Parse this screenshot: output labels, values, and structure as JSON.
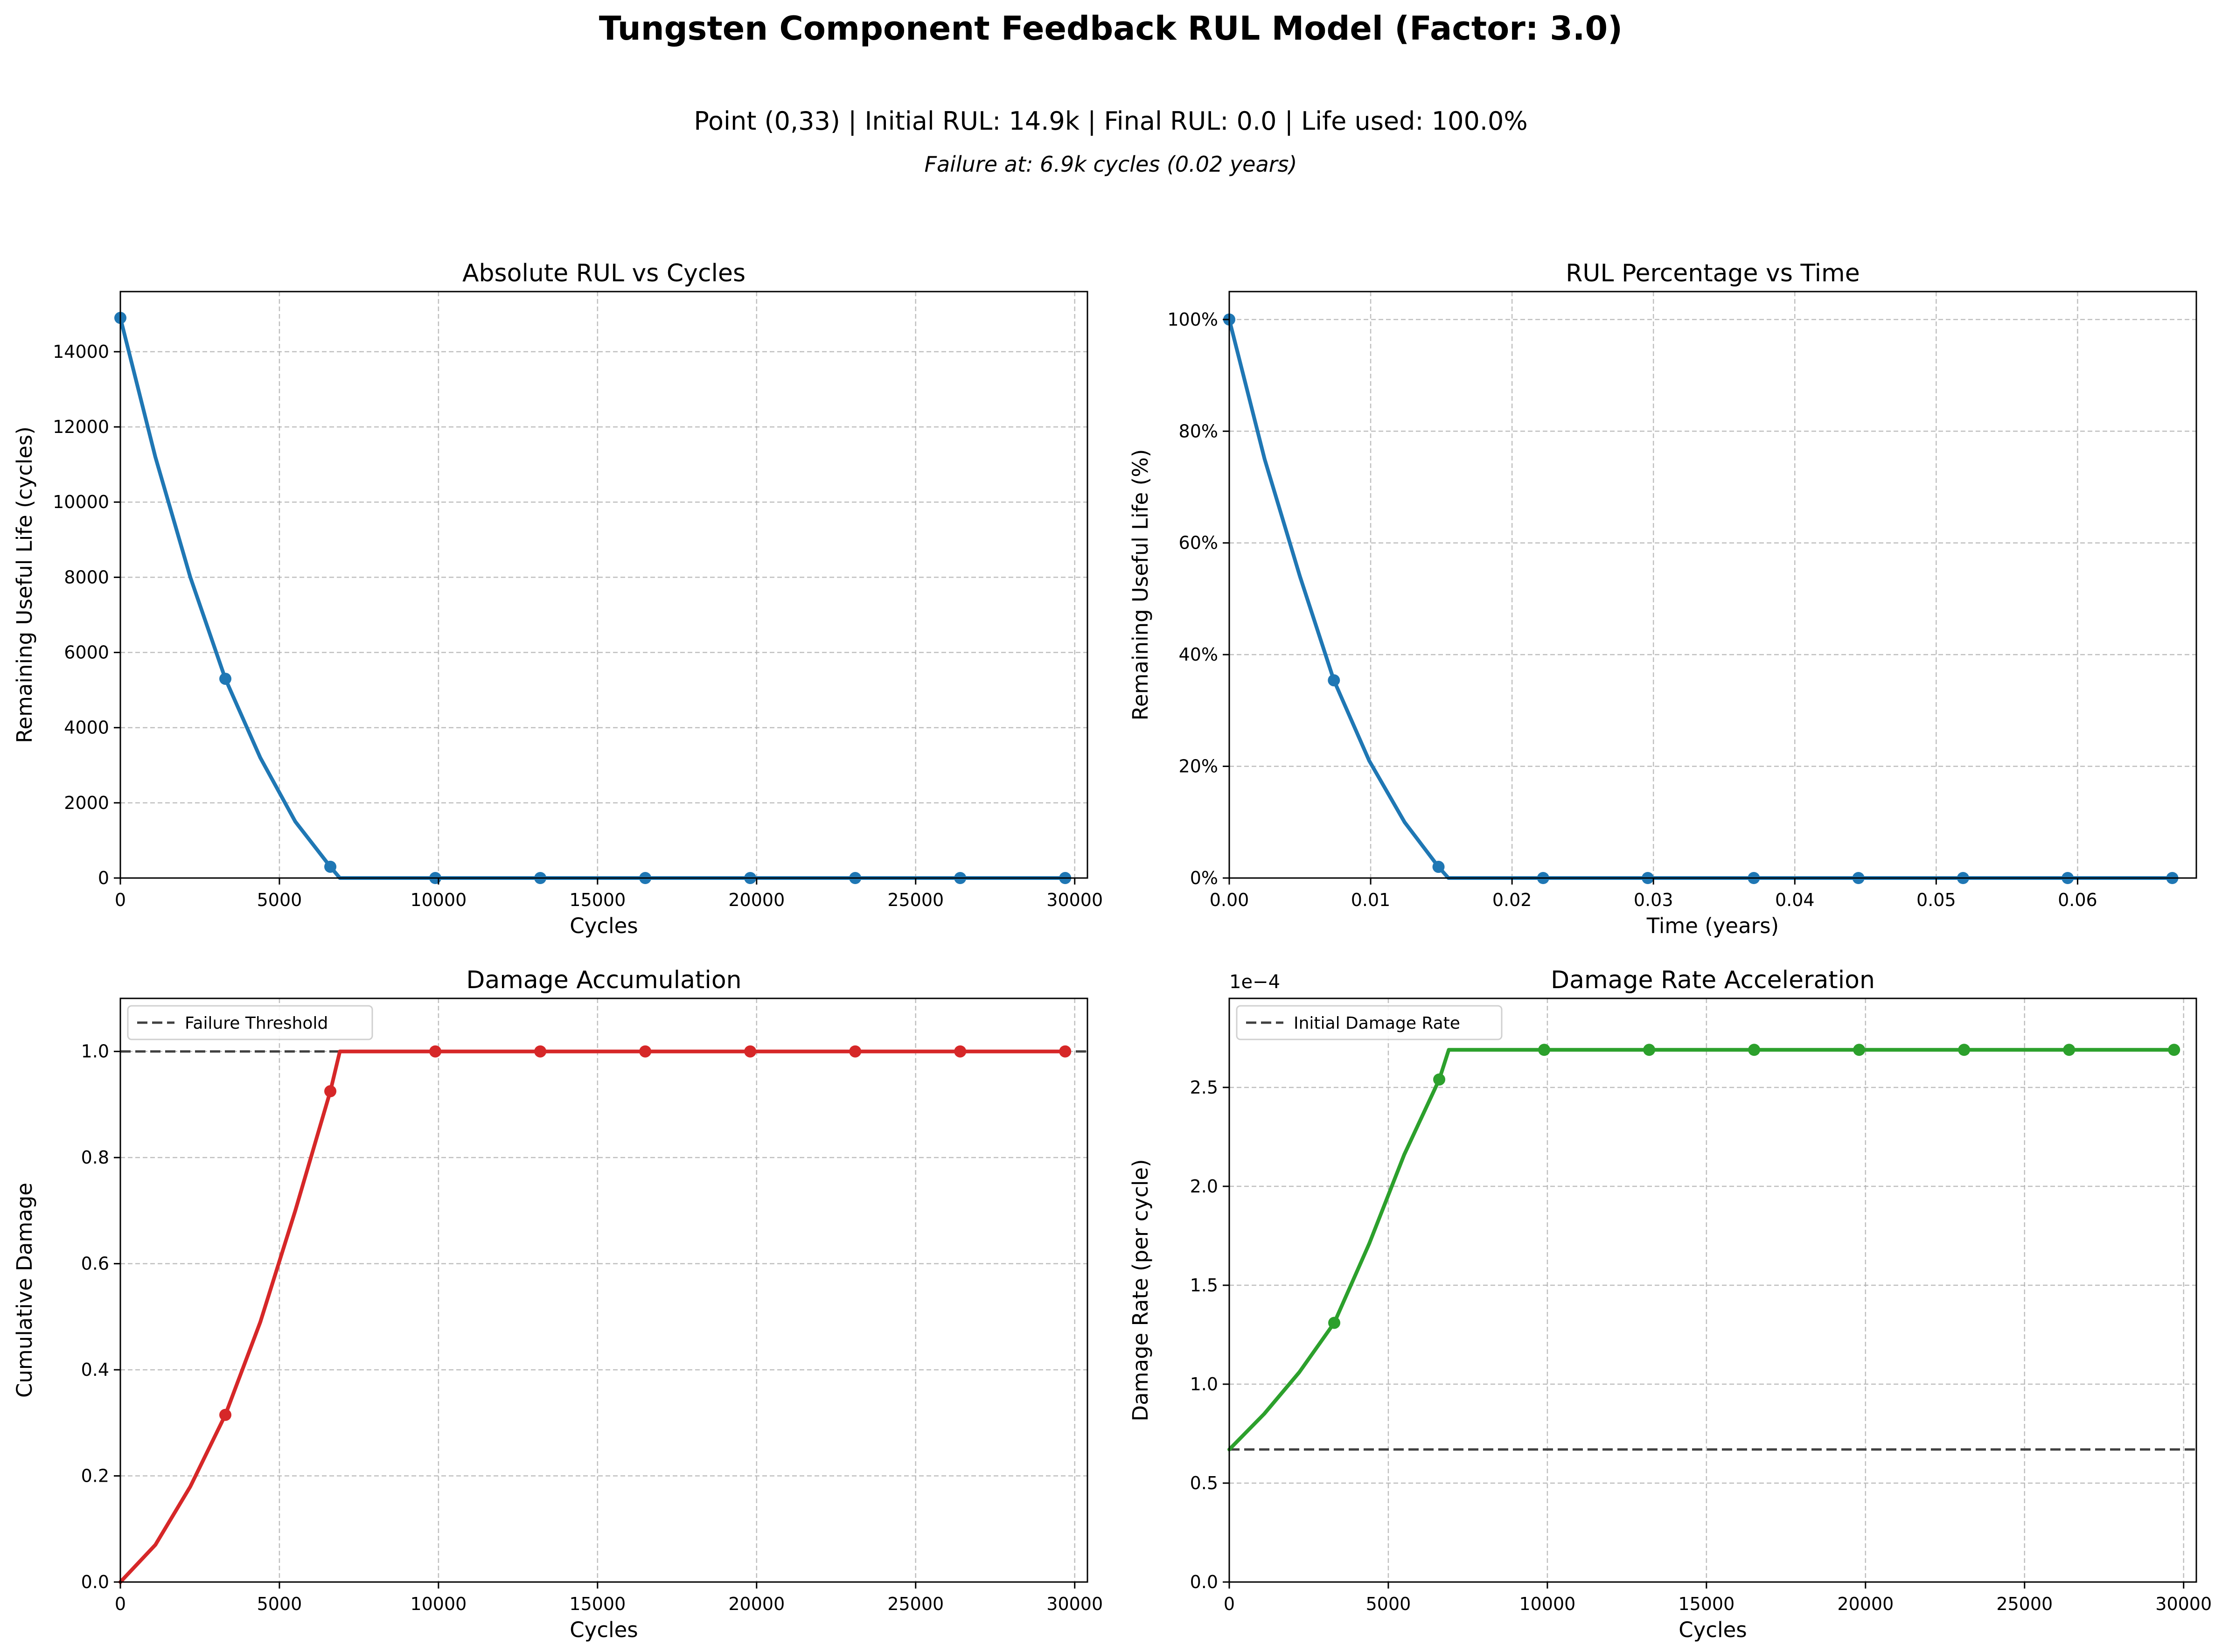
{
  "figure": {
    "title": "Tungsten Component Feedback RUL Model (Factor: 3.0)",
    "subtitle": "Point (0,33) | Initial RUL: 14.9k | Final RUL: 0.0 | Life used: 100.0%",
    "note": "Failure at: 6.9k cycles (0.02 years)"
  },
  "chart_data": [
    {
      "type": "line",
      "title": "Absolute RUL vs Cycles",
      "xlabel": "Cycles",
      "ylabel": "Remaining Useful Life (cycles)",
      "xlim": [
        0,
        30400
      ],
      "ylim": [
        0,
        15600
      ],
      "xticks": [
        0,
        5000,
        10000,
        15000,
        20000,
        25000,
        30000
      ],
      "yticks": [
        0,
        2000,
        4000,
        6000,
        8000,
        10000,
        12000,
        14000
      ],
      "ytick_format": "plain",
      "grid": true,
      "color": "#1f77b4",
      "series": [
        {
          "x": [
            0,
            1100,
            2200,
            3300,
            4400,
            5500,
            6600,
            6900,
            10000,
            20000,
            29700
          ],
          "y": [
            14900,
            11200,
            8000,
            5300,
            3200,
            1500,
            300,
            0,
            0,
            0,
            0
          ]
        }
      ],
      "markers": {
        "x": [
          0,
          3300,
          6600,
          9900,
          13200,
          16500,
          19800,
          23100,
          26400,
          29700
        ],
        "y": [
          14900,
          5300,
          300,
          0,
          0,
          0,
          0,
          0,
          0,
          0
        ]
      }
    },
    {
      "type": "line",
      "title": "RUL Percentage vs Time",
      "xlabel": "Time (years)",
      "ylabel": "Remaining Useful Life (%)",
      "xlim": [
        0,
        0.0684
      ],
      "ylim": [
        0,
        105
      ],
      "xticks": [
        0,
        0.01,
        0.02,
        0.03,
        0.04,
        0.05,
        0.06
      ],
      "xtick_labels": [
        "0.00",
        "0.01",
        "0.02",
        "0.03",
        "0.04",
        "0.05",
        "0.06"
      ],
      "yticks": [
        0,
        20,
        40,
        60,
        80,
        100
      ],
      "ytick_format": "percent",
      "grid": true,
      "color": "#1f77b4",
      "series": [
        {
          "x": [
            0,
            0.0025,
            0.005,
            0.0074,
            0.0099,
            0.0124,
            0.0148,
            0.0155,
            0.03,
            0.05,
            0.0667
          ],
          "y": [
            100,
            75,
            54,
            35.4,
            21,
            10,
            2,
            0,
            0,
            0,
            0
          ]
        }
      ],
      "markers": {
        "x": [
          0,
          0.0074,
          0.0148,
          0.0222,
          0.0296,
          0.0371,
          0.0445,
          0.0519,
          0.0593,
          0.0667
        ],
        "y": [
          100,
          35.4,
          2,
          0,
          0,
          0,
          0,
          0,
          0,
          0
        ]
      }
    },
    {
      "type": "line",
      "title": "Damage Accumulation",
      "xlabel": "Cycles",
      "ylabel": "Cumulative Damage",
      "xlim": [
        0,
        30400
      ],
      "ylim": [
        0,
        1.1
      ],
      "xticks": [
        0,
        5000,
        10000,
        15000,
        20000,
        25000,
        30000
      ],
      "yticks": [
        0,
        0.2,
        0.4,
        0.6,
        0.8,
        1.0
      ],
      "ytick_labels": [
        "0.0",
        "0.2",
        "0.4",
        "0.6",
        "0.8",
        "1.0"
      ],
      "grid": true,
      "color": "#d62728",
      "legend": {
        "label": "Failure Threshold",
        "placement": "upper left"
      },
      "reference_line": {
        "y": 1.0
      },
      "series": [
        {
          "x": [
            0,
            1100,
            2200,
            3300,
            4400,
            5500,
            6600,
            6900,
            10000,
            20000,
            29700
          ],
          "y": [
            0,
            0.07,
            0.18,
            0.315,
            0.49,
            0.7,
            0.925,
            1.0,
            1.0,
            1.0,
            1.0
          ]
        }
      ],
      "markers": {
        "x": [
          3300,
          6600,
          9900,
          13200,
          16500,
          19800,
          23100,
          26400,
          29700
        ],
        "y": [
          0.315,
          0.925,
          1.0,
          1.0,
          1.0,
          1.0,
          1.0,
          1.0,
          1.0
        ]
      }
    },
    {
      "type": "line",
      "title": "Damage Rate Acceleration",
      "xlabel": "Cycles",
      "ylabel": "Damage Rate (per cycle)",
      "offset_label": "1e−4",
      "xlim": [
        0,
        30400
      ],
      "ylim": [
        0,
        2.95
      ],
      "xticks": [
        0,
        5000,
        10000,
        15000,
        20000,
        25000,
        30000
      ],
      "yticks": [
        0,
        0.5,
        1.0,
        1.5,
        2.0,
        2.5
      ],
      "ytick_labels": [
        "0.0",
        "0.5",
        "1.0",
        "1.5",
        "2.0",
        "2.5"
      ],
      "grid": true,
      "color": "#2ca02c",
      "legend": {
        "label": "Initial Damage Rate",
        "placement": "upper left"
      },
      "reference_line": {
        "y": 0.67
      },
      "series": [
        {
          "x": [
            0,
            1100,
            2200,
            3300,
            4400,
            5500,
            6600,
            6900,
            10000,
            20000,
            29700
          ],
          "y": [
            0.67,
            0.85,
            1.06,
            1.31,
            1.71,
            2.16,
            2.54,
            2.69,
            2.69,
            2.69,
            2.69
          ]
        }
      ],
      "markers": {
        "x": [
          3300,
          6600,
          9900,
          13200,
          16500,
          19800,
          23100,
          26400,
          29700
        ],
        "y": [
          1.31,
          2.54,
          2.69,
          2.69,
          2.69,
          2.69,
          2.69,
          2.69,
          2.69
        ]
      }
    }
  ]
}
